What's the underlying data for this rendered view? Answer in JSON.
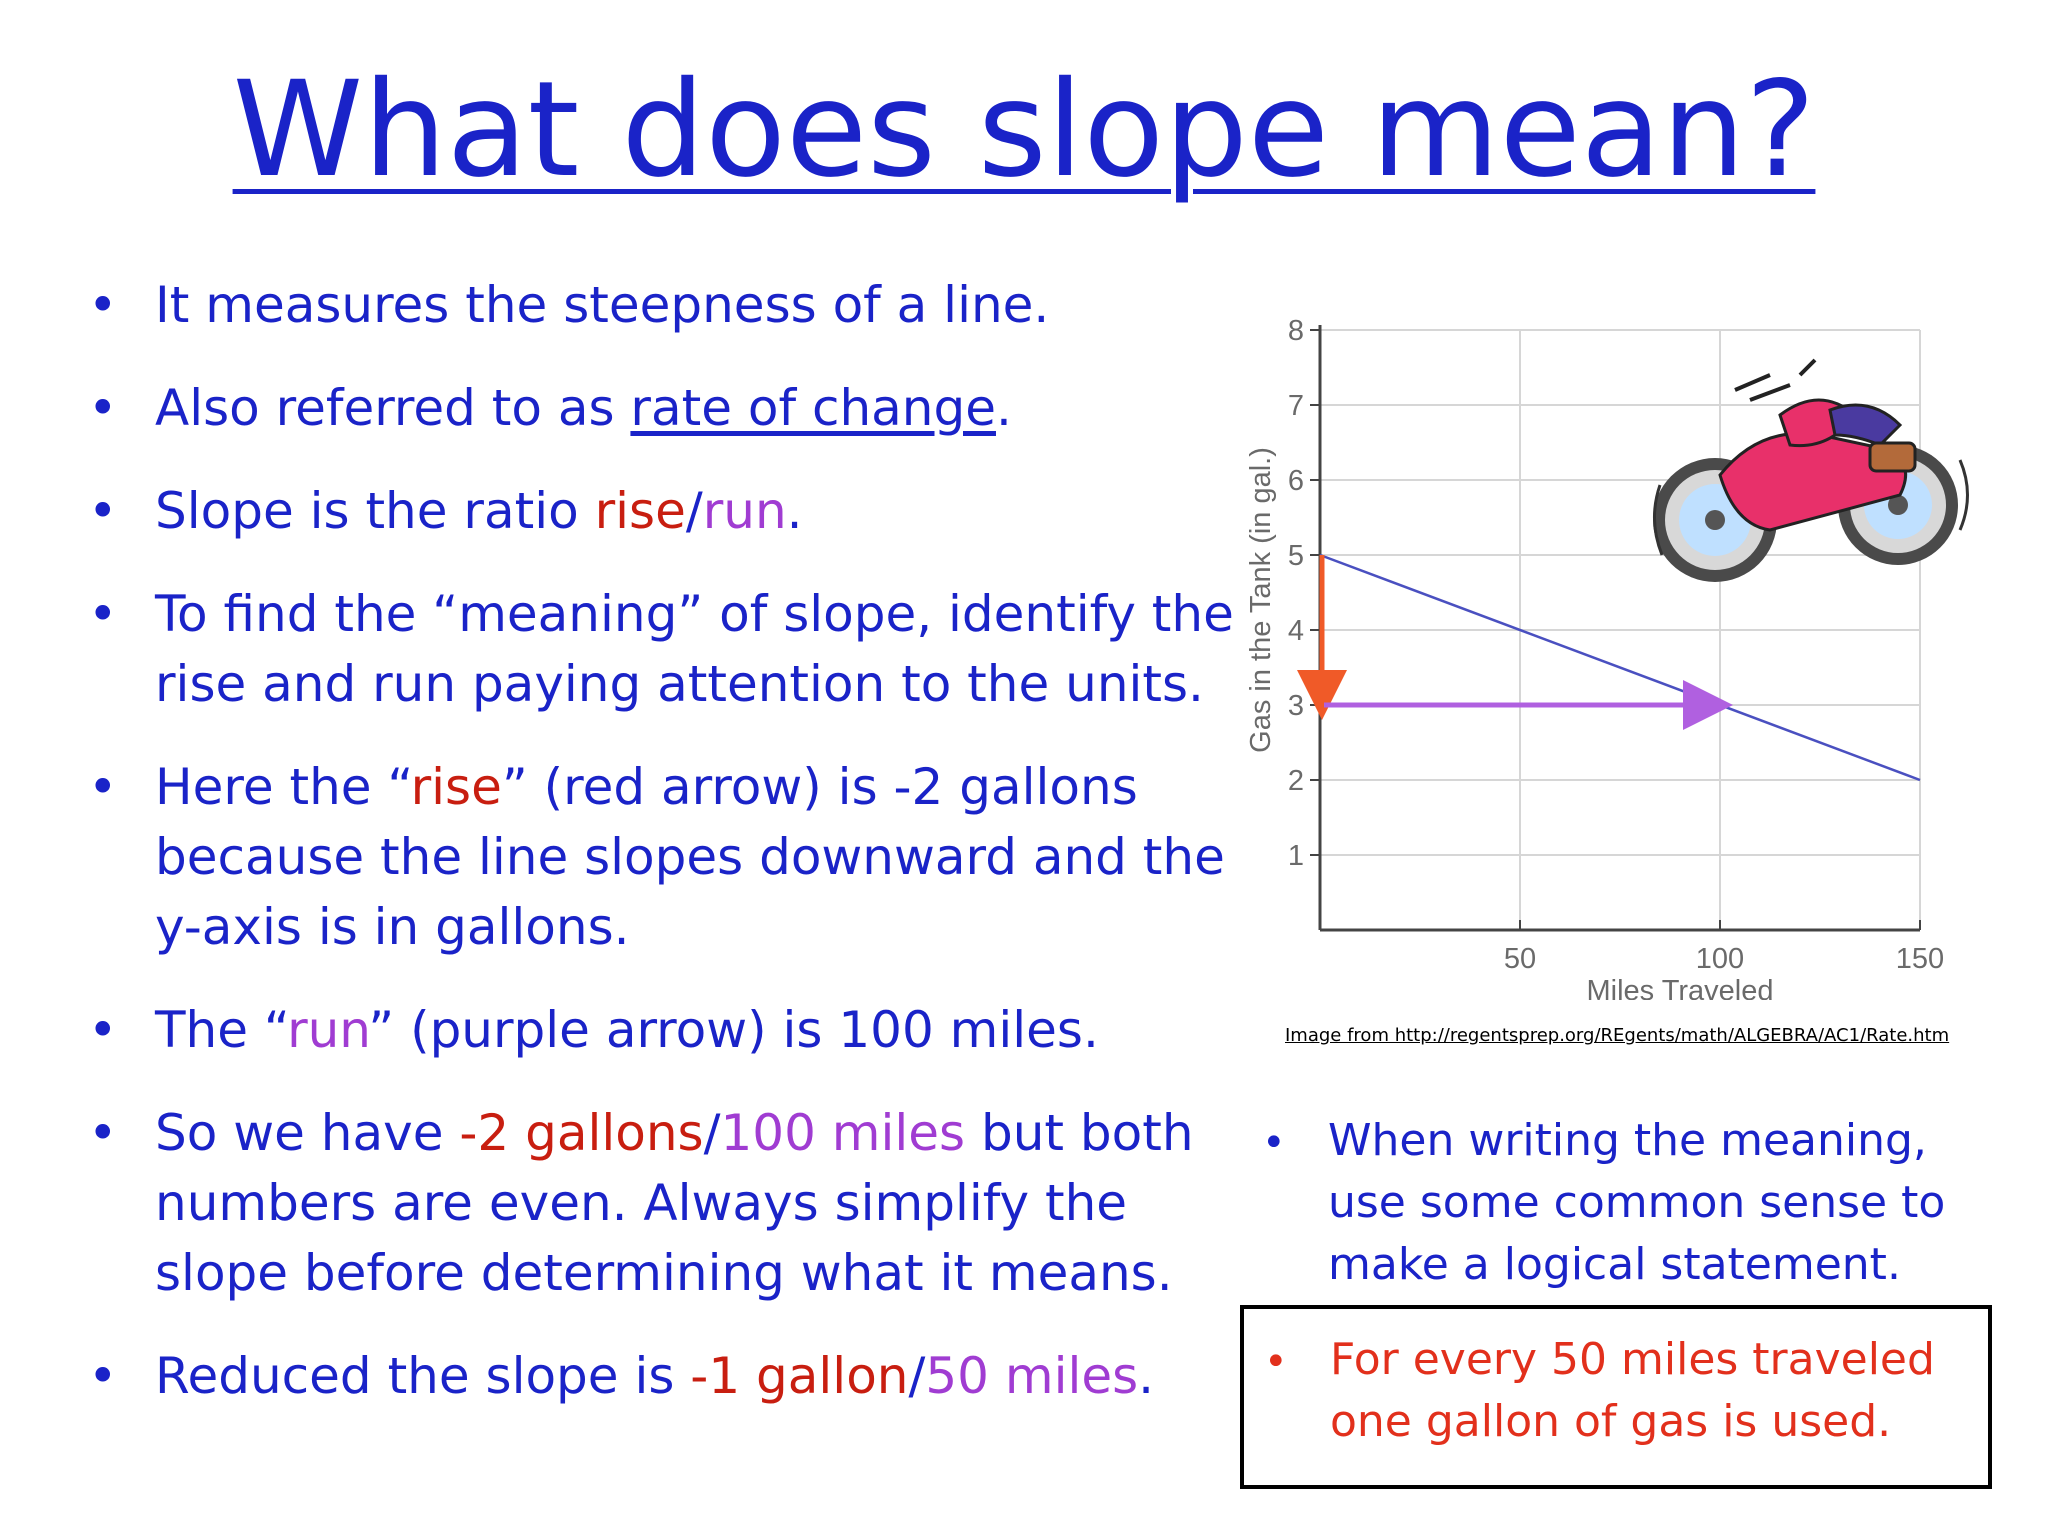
{
  "title": "What does slope mean?",
  "left_bullets": {
    "b1": "It measures the steepness of a line.",
    "b2_pre": "Also referred to as ",
    "b2_link": "rate of change",
    "b2_post": ".",
    "b3_pre": "Slope is the ratio ",
    "b3_rise": "rise",
    "b3_slash": "/",
    "b3_run": "run",
    "b3_post": ".",
    "b4": "To find the “meaning” of slope, identify the rise and run paying attention to the units.",
    "b5_pre": "Here the “",
    "b5_rise": "rise",
    "b5_post": "” (red arrow) is -2 gallons because the line slopes downward and the y-axis is in gallons.",
    "b6_pre": "The “",
    "b6_run": "run",
    "b6_post": "” (purple arrow) is 100 miles.",
    "b7_pre": "So we have ",
    "b7_red": "-2 gallons",
    "b7_slash": "/",
    "b7_purple": "100 miles",
    "b7_post": " but both numbers are even.  Always simplify the slope before determining what it means.",
    "b8_pre": "Reduced the slope is ",
    "b8_red": "-1 gallon",
    "b8_slash": "/",
    "b8_purple": "50 miles",
    "b8_post": "."
  },
  "image_credit": "Image from http://regentsprep.org/REgents/math/ALGEBRA/AC1/Rate.htm",
  "right_bullet": "When writing the meaning, use some common sense to make a logical statement.",
  "answer": "For every 50 miles traveled one gallon of gas is used.",
  "bullet_glyph": "•",
  "colors": {
    "text_blue": "#1a23c8",
    "rise_red": "#c81e10",
    "run_purple": "#a03cd2",
    "answer_red": "#e2301c",
    "line": "#4a50c0",
    "arrow_red": "#f05a28",
    "arrow_purple": "#b060e0"
  },
  "chart_data": {
    "type": "line",
    "xlabel": "Miles Traveled",
    "ylabel": "Gas in the Tank  (in gal.)",
    "xlim": [
      0,
      150
    ],
    "ylim": [
      0,
      8
    ],
    "x_ticks": [
      "50",
      "100",
      "150"
    ],
    "y_ticks": [
      "1",
      "2",
      "3",
      "4",
      "5",
      "6",
      "7",
      "8"
    ],
    "grid": true,
    "series": [
      {
        "x": [
          0,
          150
        ],
        "y": [
          5,
          2
        ]
      }
    ],
    "annotations": {
      "rise_arrow": {
        "x": 0,
        "from_y": 5,
        "to_y": 3
      },
      "run_arrow": {
        "y": 3,
        "from_x": 0,
        "to_x": 100
      }
    },
    "illustration": "motorcycle"
  }
}
